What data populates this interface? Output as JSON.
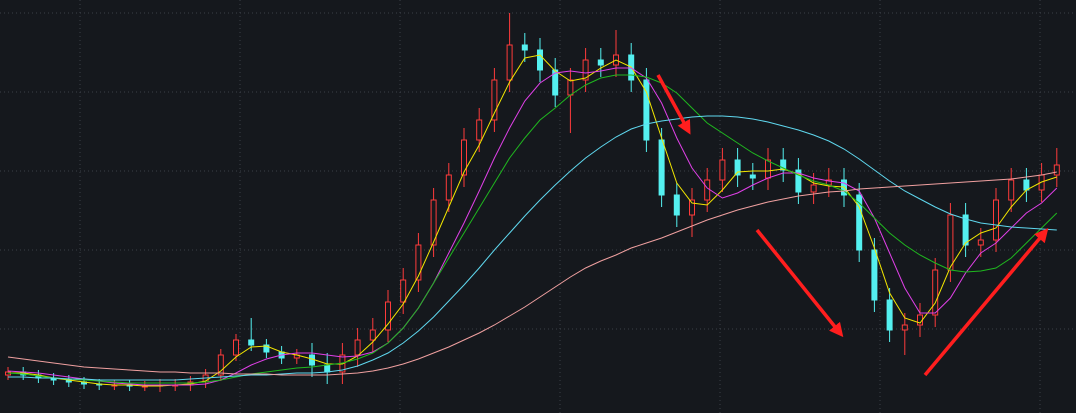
{
  "chart_data": {
    "type": "candlestick",
    "ylim": [
      0,
      413
    ],
    "up_color": "#ff3b3b",
    "down_color": "#54f0f0",
    "open": [
      38,
      41,
      38,
      35,
      33,
      31,
      29,
      28,
      28,
      27,
      27,
      28,
      28,
      31,
      38,
      58,
      73,
      68,
      61,
      55,
      58,
      48,
      41,
      58,
      73,
      83,
      111,
      133,
      168,
      213,
      238,
      273,
      293,
      333,
      368,
      363,
      343,
      318,
      333,
      353,
      348,
      358,
      333,
      273,
      218,
      198,
      213,
      233,
      253,
      238,
      235,
      253,
      243,
      221,
      228,
      233,
      218,
      163,
      113,
      83,
      88,
      98,
      143,
      198,
      168,
      173,
      213,
      233,
      223,
      238
    ],
    "high": [
      46,
      46,
      43,
      40,
      38,
      36,
      34,
      33,
      33,
      32,
      34,
      34,
      37,
      44,
      64,
      79,
      95,
      74,
      67,
      64,
      70,
      60,
      70,
      85,
      95,
      123,
      145,
      180,
      225,
      250,
      285,
      305,
      345,
      400,
      380,
      375,
      355,
      345,
      365,
      365,
      383,
      370,
      345,
      285,
      230,
      225,
      245,
      265,
      265,
      250,
      265,
      265,
      255,
      240,
      245,
      245,
      230,
      175,
      125,
      100,
      110,
      155,
      210,
      210,
      185,
      225,
      245,
      245,
      250,
      265
    ],
    "low": [
      33,
      33,
      30,
      28,
      26,
      24,
      23,
      23,
      22,
      22,
      21,
      22,
      22,
      25,
      32,
      52,
      62,
      55,
      49,
      49,
      36,
      29,
      29,
      46,
      61,
      71,
      99,
      121,
      156,
      201,
      226,
      261,
      281,
      321,
      351,
      331,
      306,
      280,
      321,
      336,
      336,
      321,
      261,
      206,
      186,
      176,
      201,
      221,
      226,
      223,
      223,
      231,
      209,
      209,
      216,
      206,
      151,
      101,
      71,
      58,
      76,
      86,
      131,
      156,
      156,
      161,
      201,
      211,
      211,
      226
    ],
    "close": [
      41,
      38,
      35,
      33,
      31,
      29,
      28,
      28,
      27,
      27,
      28,
      28,
      31,
      38,
      58,
      73,
      68,
      61,
      55,
      58,
      48,
      41,
      58,
      73,
      83,
      111,
      133,
      168,
      213,
      238,
      273,
      293,
      333,
      368,
      363,
      343,
      318,
      333,
      353,
      348,
      358,
      333,
      273,
      218,
      198,
      213,
      233,
      253,
      238,
      235,
      253,
      243,
      221,
      228,
      233,
      218,
      163,
      113,
      83,
      88,
      98,
      143,
      198,
      168,
      173,
      213,
      233,
      223,
      238,
      248
    ],
    "series": [
      {
        "color": "#f2e600",
        "values": [
          40,
          40,
          38,
          35,
          33,
          31,
          29,
          28,
          28,
          27,
          27,
          28,
          29,
          32,
          42,
          56,
          66,
          67,
          61,
          58,
          54,
          49,
          49,
          57,
          71,
          89,
          109,
          137,
          171,
          206,
          241,
          268,
          300,
          331,
          355,
          358,
          342,
          332,
          335,
          345,
          353,
          346,
          321,
          275,
          230,
          210,
          208,
          223,
          241,
          242,
          242,
          244,
          239,
          230,
          227,
          226,
          206,
          165,
          120,
          95,
          90,
          110,
          146,
          170,
          180,
          185,
          206,
          223,
          231,
          236
        ]
      },
      {
        "color": "#e040e8",
        "values": [
          42,
          41,
          40,
          38,
          36,
          34,
          32,
          30,
          29,
          28,
          28,
          28,
          28,
          29,
          33,
          40,
          48,
          54,
          58,
          60,
          60,
          58,
          56,
          57,
          61,
          70,
          85,
          105,
          130,
          160,
          190,
          222,
          255,
          285,
          312,
          330,
          340,
          342,
          340,
          342,
          345,
          345,
          335,
          310,
          275,
          245,
          225,
          215,
          220,
          228,
          235,
          240,
          240,
          235,
          232,
          230,
          222,
          195,
          160,
          125,
          100,
          100,
          115,
          140,
          160,
          170,
          185,
          200,
          210,
          225
        ]
      },
      {
        "color": "#1fb81f",
        "values": [
          40,
          39,
          37,
          35,
          34,
          33,
          32,
          31,
          30,
          30,
          30,
          30,
          30,
          31,
          33,
          36,
          39,
          41,
          43,
          45,
          46,
          48,
          50,
          54,
          60,
          70,
          85,
          105,
          130,
          155,
          180,
          205,
          230,
          255,
          275,
          293,
          305,
          318,
          328,
          335,
          338,
          338,
          336,
          330,
          320,
          305,
          290,
          280,
          270,
          260,
          252,
          245,
          238,
          232,
          228,
          222,
          210,
          195,
          180,
          168,
          158,
          150,
          143,
          141,
          142,
          145,
          155,
          170,
          185,
          200
        ]
      },
      {
        "color": "#5fd8ef",
        "values": [
          36,
          36,
          35,
          35,
          34,
          34,
          33,
          33,
          33,
          33,
          33,
          33,
          34,
          35,
          36,
          37,
          38,
          38,
          39,
          40,
          40,
          41,
          43,
          47,
          53,
          60,
          70,
          82,
          96,
          112,
          128,
          145,
          163,
          180,
          197,
          213,
          228,
          242,
          255,
          266,
          276,
          284,
          289,
          292,
          294,
          296,
          297,
          297,
          296,
          294,
          291,
          287,
          283,
          278,
          272,
          264,
          254,
          243,
          232,
          222,
          214,
          206,
          199,
          194,
          190,
          188,
          186,
          185,
          184,
          183
        ]
      },
      {
        "color": "#f0a0a0",
        "values": [
          56,
          54,
          52,
          50,
          48,
          46,
          45,
          44,
          43,
          42,
          41,
          41,
          40,
          40,
          40,
          39,
          39,
          39,
          38,
          38,
          38,
          38,
          39,
          40,
          42,
          45,
          49,
          54,
          60,
          66,
          73,
          80,
          88,
          97,
          106,
          116,
          126,
          136,
          145,
          152,
          158,
          165,
          170,
          175,
          181,
          187,
          193,
          198,
          203,
          207,
          211,
          214,
          217,
          219,
          221,
          222,
          224,
          225,
          226,
          227,
          228,
          229,
          230,
          231,
          232,
          233,
          234,
          236,
          238,
          241
        ]
      }
    ]
  }
}
